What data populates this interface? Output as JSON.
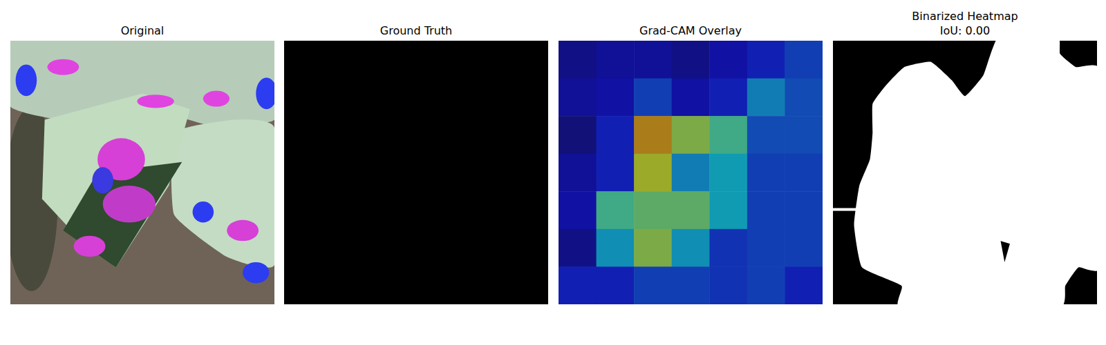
{
  "chart_data": [
    {
      "type": "image",
      "title": "Original"
    },
    {
      "type": "image",
      "title": "Ground Truth"
    },
    {
      "type": "heatmap",
      "title": "Grad-CAM Overlay",
      "tick_labels": false,
      "values": [
        [
          0.05,
          0.08,
          0.08,
          0.05,
          0.1,
          0.15,
          0.2
        ],
        [
          0.08,
          0.1,
          0.2,
          0.1,
          0.15,
          0.3,
          0.22
        ],
        [
          0.03,
          0.15,
          0.7,
          0.55,
          0.45,
          0.22,
          0.22
        ],
        [
          0.08,
          0.15,
          0.6,
          0.3,
          0.35,
          0.2,
          0.2
        ],
        [
          0.1,
          0.45,
          0.5,
          0.5,
          0.35,
          0.2,
          0.2
        ],
        [
          0.05,
          0.33,
          0.55,
          0.33,
          0.18,
          0.2,
          0.2
        ],
        [
          0.15,
          0.15,
          0.2,
          0.2,
          0.18,
          0.2,
          0.15
        ]
      ]
    },
    {
      "type": "image",
      "title": "Binarized Heatmap",
      "subtitle": "IoU: 0.00"
    }
  ]
}
